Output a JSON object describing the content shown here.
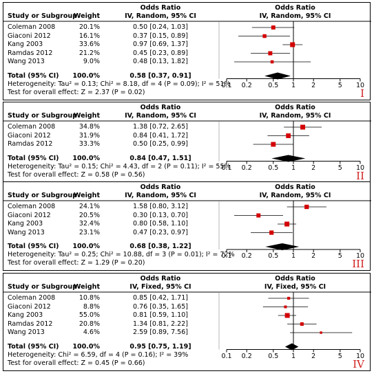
{
  "chart_data": [
    {
      "type": "forest",
      "panel_label": "I",
      "header": {
        "col1": "Study or Subgroup",
        "col2": "Weight",
        "col3_top": "Odds Ratio",
        "col3": "IV, Random, 95% CI",
        "plot_top": "Odds Ratio",
        "plot": "IV, Random, 95% CI"
      },
      "studies": [
        {
          "name": "Coleman 2008",
          "weight": "20.1%",
          "ci_text": "0.50 [0.24, 1.03]",
          "or": 0.5,
          "lo": 0.24,
          "hi": 1.03
        },
        {
          "name": "Giaconi 2012",
          "weight": "16.1%",
          "ci_text": "0.37 [0.15, 0.89]",
          "or": 0.37,
          "lo": 0.15,
          "hi": 0.89
        },
        {
          "name": "Kang 2003",
          "weight": "33.6%",
          "ci_text": "0.97 [0.69, 1.37]",
          "or": 0.97,
          "lo": 0.69,
          "hi": 1.37
        },
        {
          "name": "Ramdas 2012",
          "weight": "21.2%",
          "ci_text": "0.45 [0.23, 0.89]",
          "or": 0.45,
          "lo": 0.23,
          "hi": 0.89
        },
        {
          "name": "Wang 2013",
          "weight": "9.0%",
          "ci_text": "0.48 [0.13, 1.82]",
          "or": 0.48,
          "lo": 0.13,
          "hi": 1.82
        }
      ],
      "total": {
        "label": "Total (95% CI)",
        "weight": "100.0%",
        "ci_text": "0.58 [0.37, 0.91]",
        "or": 0.58,
        "lo": 0.37,
        "hi": 0.91
      },
      "heterogeneity": "Heterogeneity: Tau² = 0.13; Chi² = 8.18, df = 4 (P = 0.09); I² = 51%",
      "overall_effect": "Test for overall effect: Z = 2.37 (P = 0.02)",
      "axis": {
        "scale": "log",
        "ticks": [
          0.1,
          0.2,
          0.5,
          1,
          2,
          5,
          10
        ],
        "tick_labels": [
          "0.1",
          "0.2",
          "0.5",
          "1",
          "2",
          "5",
          "10"
        ],
        "xlim": [
          0.1,
          10
        ]
      }
    },
    {
      "type": "forest",
      "panel_label": "II",
      "header": {
        "col1": "Study or Subgroup",
        "col2": "Weight",
        "col3_top": "Odds Ratio",
        "col3": "IV, Random, 95% CI",
        "plot_top": "Odds Ratio",
        "plot": "IV, Random, 95% CI"
      },
      "studies": [
        {
          "name": "Coleman 2008",
          "weight": "34.8%",
          "ci_text": "1.38 [0.72, 2.65]",
          "or": 1.38,
          "lo": 0.72,
          "hi": 2.65
        },
        {
          "name": "Giaconi 2012",
          "weight": "31.9%",
          "ci_text": "0.84 [0.41, 1.72]",
          "or": 0.84,
          "lo": 0.41,
          "hi": 1.72
        },
        {
          "name": "Ramdas 2012",
          "weight": "33.3%",
          "ci_text": "0.50 [0.25, 0.99]",
          "or": 0.5,
          "lo": 0.25,
          "hi": 0.99
        }
      ],
      "total": {
        "label": "Total (95% CI)",
        "weight": "100.0%",
        "ci_text": "0.84 [0.47, 1.51]",
        "or": 0.84,
        "lo": 0.47,
        "hi": 1.51
      },
      "heterogeneity": "Heterogeneity: Tau² = 0.15; Chi² = 4.43, df = 2 (P = 0.11); I² = 55%",
      "overall_effect": "Test for overall effect: Z = 0.58 (P = 0.56)",
      "axis": {
        "scale": "log",
        "ticks": [
          0.1,
          0.2,
          0.5,
          1,
          2,
          5,
          10
        ],
        "tick_labels": [
          "0.1",
          "0.2",
          "0.5",
          "1",
          "2",
          "5",
          "10"
        ],
        "xlim": [
          0.1,
          10
        ]
      }
    },
    {
      "type": "forest",
      "panel_label": "III",
      "header": {
        "col1": "Study or Subgroup",
        "col2": "Weight",
        "col3_top": "Odds Ratio",
        "col3": "IV, Random, 95% CI",
        "plot_top": "Odds Ratio",
        "plot": "IV, Random, 95% CI"
      },
      "studies": [
        {
          "name": "Coleman 2008",
          "weight": "24.1%",
          "ci_text": "1.58 [0.80, 3.12]",
          "or": 1.58,
          "lo": 0.8,
          "hi": 3.12
        },
        {
          "name": "Giaconi 2012",
          "weight": "20.5%",
          "ci_text": "0.30 [0.13, 0.70]",
          "or": 0.3,
          "lo": 0.13,
          "hi": 0.7
        },
        {
          "name": "Kang 2003",
          "weight": "32.4%",
          "ci_text": "0.80 [0.58, 1.10]",
          "or": 0.8,
          "lo": 0.58,
          "hi": 1.1
        },
        {
          "name": "Wang 2013",
          "weight": "23.1%",
          "ci_text": "0.47 [0.23, 0.97]",
          "or": 0.47,
          "lo": 0.23,
          "hi": 0.97
        }
      ],
      "total": {
        "label": "Total (95% CI)",
        "weight": "100.0%",
        "ci_text": "0.68 [0.38, 1.22]",
        "or": 0.68,
        "lo": 0.38,
        "hi": 1.22
      },
      "heterogeneity": "Heterogeneity: Tau² = 0.25; Chi² = 10.88, df = 3 (P = 0.01); I² = 72%",
      "overall_effect": "Test for overall effect: Z = 1.29 (P = 0.20)",
      "axis": {
        "scale": "log",
        "ticks": [
          0.1,
          0.2,
          0.5,
          1,
          2,
          5,
          10
        ],
        "tick_labels": [
          "0.1",
          "0.2",
          "0.5",
          "1",
          "2",
          "5",
          "10"
        ],
        "xlim": [
          0.1,
          10
        ]
      }
    },
    {
      "type": "forest",
      "panel_label": "IV",
      "header": {
        "col1": "Study or Subgroup",
        "col2": "Weight",
        "col3_top": "Odds Ratio",
        "col3": "IV, Fixed, 95% CI",
        "plot_top": "Odds Ratio",
        "plot": "IV, Fixed, 95% CI"
      },
      "studies": [
        {
          "name": "Coleman 2008",
          "weight": "10.8%",
          "ci_text": "0.85 [0.42, 1.71]",
          "or": 0.85,
          "lo": 0.42,
          "hi": 1.71
        },
        {
          "name": "Giaconi 2012",
          "weight": "8.8%",
          "ci_text": "0.76 [0.35, 1.65]",
          "or": 0.76,
          "lo": 0.35,
          "hi": 1.65
        },
        {
          "name": "Kang 2003",
          "weight": "55.0%",
          "ci_text": "0.81 [0.59, 1.10]",
          "or": 0.81,
          "lo": 0.59,
          "hi": 1.1
        },
        {
          "name": "Ramdas 2012",
          "weight": "20.8%",
          "ci_text": "1.34 [0.81, 2.22]",
          "or": 1.34,
          "lo": 0.81,
          "hi": 2.22
        },
        {
          "name": "Wang 2013",
          "weight": "4.6%",
          "ci_text": "2.59 [0.89, 7.56]",
          "or": 2.59,
          "lo": 0.89,
          "hi": 7.56
        }
      ],
      "total": {
        "label": "Total (95% CI)",
        "weight": "100.0%",
        "ci_text": "0.95 [0.75, 1.19]",
        "or": 0.95,
        "lo": 0.75,
        "hi": 1.19
      },
      "heterogeneity": "Heterogeneity: Chi² = 6.59, df = 4 (P = 0.16); I² = 39%",
      "overall_effect": "Test for overall effect: Z = 0.45 (P = 0.66)",
      "axis": {
        "scale": "log",
        "ticks": [
          0.1,
          0.2,
          0.5,
          1,
          2,
          5,
          10
        ],
        "tick_labels": [
          "0.1",
          "0.2",
          "0.5",
          "1",
          "2",
          "5",
          "10"
        ],
        "xlim": [
          0.1,
          10
        ]
      }
    }
  ],
  "colors": {
    "study_marker": "#d40000",
    "summary_diamond": "#000000",
    "panel_label": "#d02020",
    "lines": "#000000"
  }
}
